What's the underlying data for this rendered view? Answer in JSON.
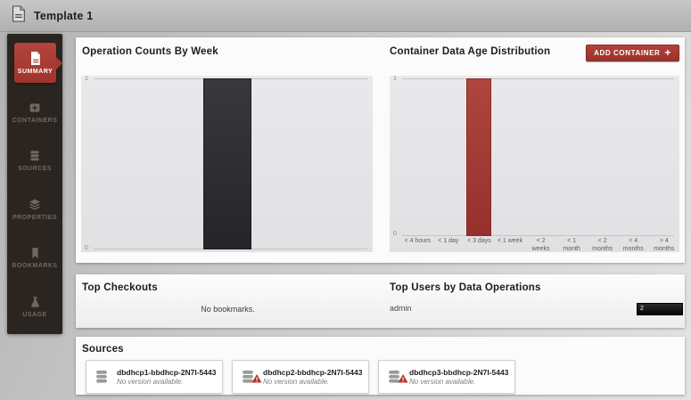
{
  "topbar": {
    "title": "Template 1"
  },
  "sidebar": {
    "items": [
      {
        "label": "SUMMARY",
        "active": true
      },
      {
        "label": "CONTAINERS",
        "active": false
      },
      {
        "label": "SOURCES",
        "active": false
      },
      {
        "label": "PROPERTIES",
        "active": false
      },
      {
        "label": "BOOKMARKS",
        "active": false
      },
      {
        "label": "USAGE",
        "active": false
      }
    ]
  },
  "charts": {
    "add_container_label": "ADD CONTAINER",
    "add_container_plus": "+"
  },
  "chart_data": [
    {
      "type": "bar",
      "title": "Operation Counts By Week",
      "categories": [
        ""
      ],
      "values": [
        1
      ],
      "ylim": [
        0,
        1
      ],
      "ytick_labels": [
        "1",
        "0"
      ],
      "xlabel": "",
      "ylabel": "",
      "bar_color": "#2e2d2f",
      "grid": "horizontal lines at 0 and 1 only",
      "legend": "none"
    },
    {
      "type": "bar",
      "title": "Container Data Age Distribution",
      "categories": [
        "< 4 hours",
        "< 1 day",
        "< 3 days",
        "< 1 week",
        "< 2\nweeks",
        "< 1\nmonth",
        "< 2\nmonths",
        "< 4\nmonths",
        "> 4\nmonths"
      ],
      "values": [
        0,
        0,
        1,
        0,
        0,
        0,
        0,
        0,
        0
      ],
      "ylim": [
        0,
        1
      ],
      "ytick_labels": [
        "1",
        "0"
      ],
      "xlabel": "",
      "ylabel": "",
      "bar_color": "#a43b36",
      "grid": "horizontal lines at 0 and 1 only",
      "legend": "none"
    },
    {
      "type": "bar",
      "orientation": "horizontal",
      "title": "Top Users by Data Operations",
      "categories": [
        "admin"
      ],
      "values": [
        2
      ],
      "bar_color": "#1a1a1a",
      "legend": "none"
    }
  ],
  "checkouts": {
    "title": "Top Checkouts",
    "empty_message": "No bookmarks."
  },
  "top_users": {
    "title": "Top Users by Data Operations",
    "rows": [
      {
        "user": "admin",
        "value": "2"
      }
    ]
  },
  "sources": {
    "title": "Sources",
    "cards": [
      {
        "name": "dbdhcp1-bbdhcp-2N7I-5443…",
        "status": "No version available.",
        "warning": false
      },
      {
        "name": "dbdhcp2-bbdhcp-2N7I-5443…",
        "status": "No version available.",
        "warning": true
      },
      {
        "name": "dbdhcp3-bbdhcp-2N7I-5443…",
        "status": "No version available.",
        "warning": true
      }
    ]
  },
  "colors": {
    "accent_red": "#a5382f",
    "bar_dark": "#2e2d2f",
    "bar_red": "#a43b36",
    "sidebar_bg": "#2b2521",
    "user_bar_black": "#111111"
  }
}
